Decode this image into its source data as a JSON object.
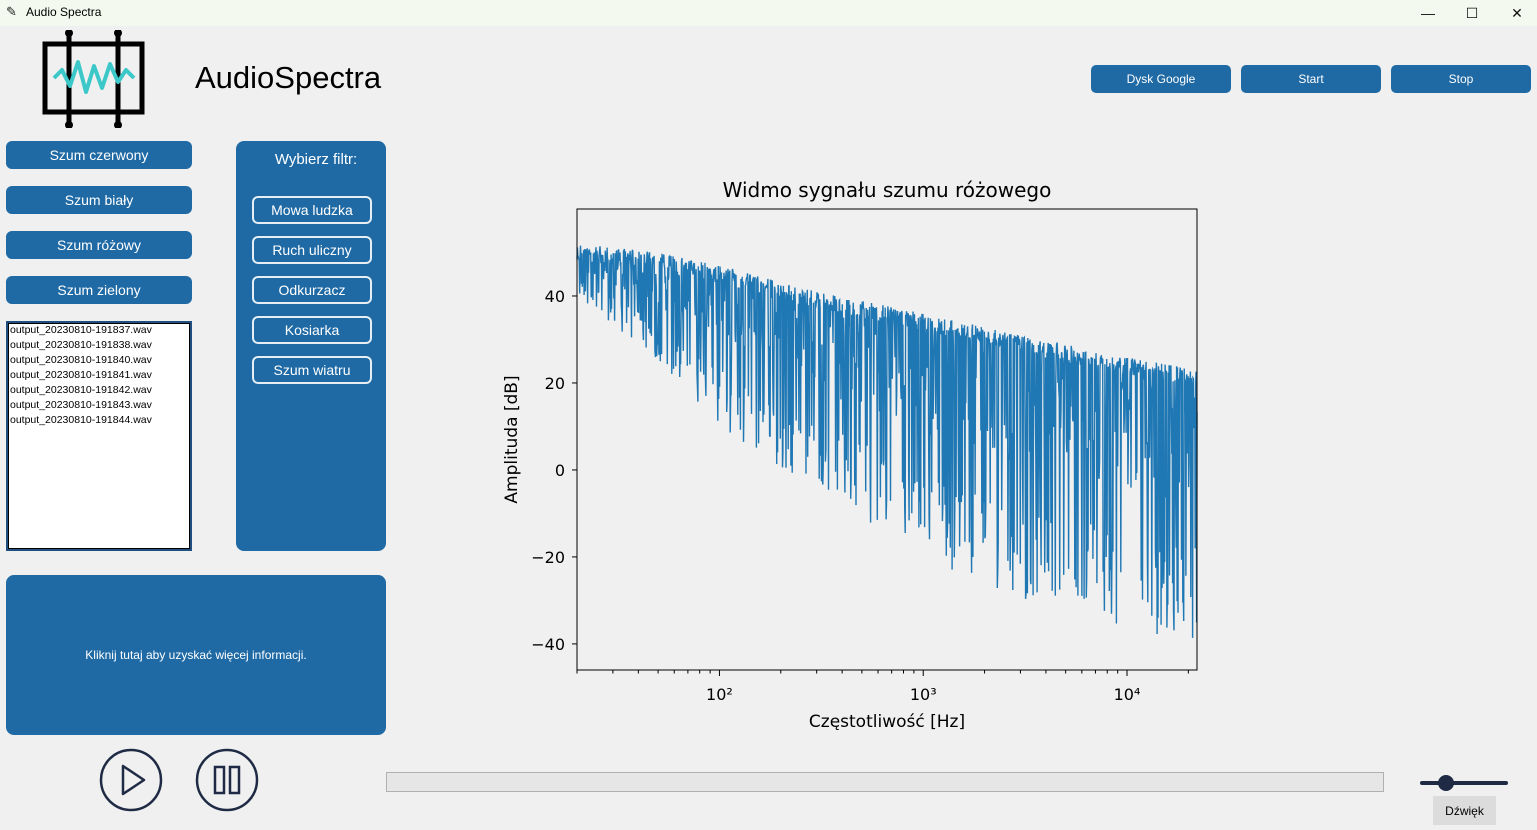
{
  "window": {
    "title": "Audio Spectra",
    "controls": [
      "—",
      "☐",
      "✕"
    ]
  },
  "header": {
    "app_name": "AudioSpectra",
    "buttons": [
      {
        "label": "Dysk Google"
      },
      {
        "label": "Start"
      },
      {
        "label": "Stop"
      }
    ]
  },
  "noise_buttons": [
    {
      "label": "Szum czerwony"
    },
    {
      "label": "Szum biały"
    },
    {
      "label": "Szum różowy"
    },
    {
      "label": "Szum zielony"
    }
  ],
  "files": [
    "output_20230810-191837.wav",
    "output_20230810-191838.wav",
    "output_20230810-191840.wav",
    "output_20230810-191841.wav",
    "output_20230810-191842.wav",
    "output_20230810-191843.wav",
    "output_20230810-191844.wav"
  ],
  "filter_panel": {
    "title": "Wybierz filtr:",
    "filters": [
      {
        "label": "Mowa ludzka"
      },
      {
        "label": "Ruch uliczny"
      },
      {
        "label": "Odkurzacz"
      },
      {
        "label": "Kosiarka"
      },
      {
        "label": "Szum wiatru"
      }
    ]
  },
  "info_panel": {
    "text": "Kliknij tutaj aby uzyskać więcej informacji."
  },
  "playback": {
    "play_icon": "play-icon",
    "pause_icon": "pause-icon",
    "progress": 0.0,
    "volume": 0.3,
    "volume_label": "Dźwięk"
  },
  "colors": {
    "accent": "#1f6aa5",
    "line": "#1f77b4"
  },
  "chart_data": {
    "type": "line",
    "title": "Widmo sygnału szumu różowego",
    "xlabel": "Częstotliwość [Hz]",
    "ylabel": "Amplituda [dB]",
    "xscale": "log",
    "xlim": [
      20,
      22050
    ],
    "ylim": [
      -46,
      60
    ],
    "xticks": [
      {
        "value": 100,
        "label": "10²"
      },
      {
        "value": 1000,
        "label": "10³"
      },
      {
        "value": 10000,
        "label": "10⁴"
      }
    ],
    "yticks": [
      -40,
      -20,
      0,
      20,
      40
    ],
    "series": [
      {
        "color": "#1f77b4",
        "upper": [
          [
            20,
            52
          ],
          [
            50,
            50
          ],
          [
            100,
            47
          ],
          [
            300,
            41
          ],
          [
            1000,
            36
          ],
          [
            3000,
            31
          ],
          [
            10000,
            26
          ],
          [
            22050,
            23
          ]
        ],
        "lower": [
          [
            20,
            40
          ],
          [
            50,
            25
          ],
          [
            100,
            10
          ],
          [
            300,
            -5
          ],
          [
            1000,
            -20
          ],
          [
            3000,
            -30
          ],
          [
            10000,
            -36
          ],
          [
            22050,
            -40
          ]
        ]
      }
    ]
  }
}
